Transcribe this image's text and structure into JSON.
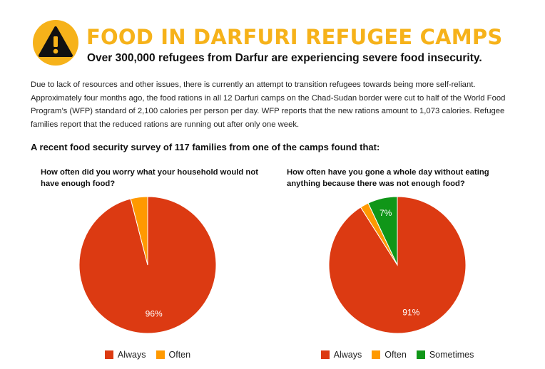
{
  "header": {
    "title": "FOOD IN DARFURI REFUGEE CAMPS",
    "subtitle": "Over 300,000 refugees from Darfur are experiencing severe food insecurity.",
    "icon": "warning-icon"
  },
  "intro": "Due to lack of resources and other issues, there is currently an attempt to transition refugees towards being more self-reliant. Approximately four months ago, the food rations in all 12 Darfuri camps on the Chad-Sudan border were cut to half of the World Food Program’s (WFP) standard of 2,100 calories per person per day. WFP reports that the new rations amount to 1,073 calories. Refugee families report that the reduced rations are running out after only one week.",
  "survey_heading": "A recent food security survey of 117 families from one of the camps found that:",
  "colors": {
    "accent": "#f6b21a",
    "always": "#dc3a12",
    "often": "#ff9900",
    "sometimes": "#109618"
  },
  "chart_data": [
    {
      "type": "pie",
      "title": "How often did you worry what your household would not have enough food?",
      "labels": [
        "Always",
        "Often"
      ],
      "values": [
        96,
        4
      ],
      "slice_labels": [
        "96%",
        ""
      ],
      "colors": [
        "#dc3a12",
        "#ff9900"
      ],
      "legend": "bottom"
    },
    {
      "type": "pie",
      "title": "How often have you gone a whole day without eating anything because there was not enough food?",
      "labels": [
        "Always",
        "Often",
        "Sometimes"
      ],
      "values": [
        91,
        2,
        7
      ],
      "slice_labels": [
        "91%",
        "",
        "7%"
      ],
      "colors": [
        "#dc3a12",
        "#ff9900",
        "#109618"
      ],
      "legend": "bottom"
    }
  ]
}
